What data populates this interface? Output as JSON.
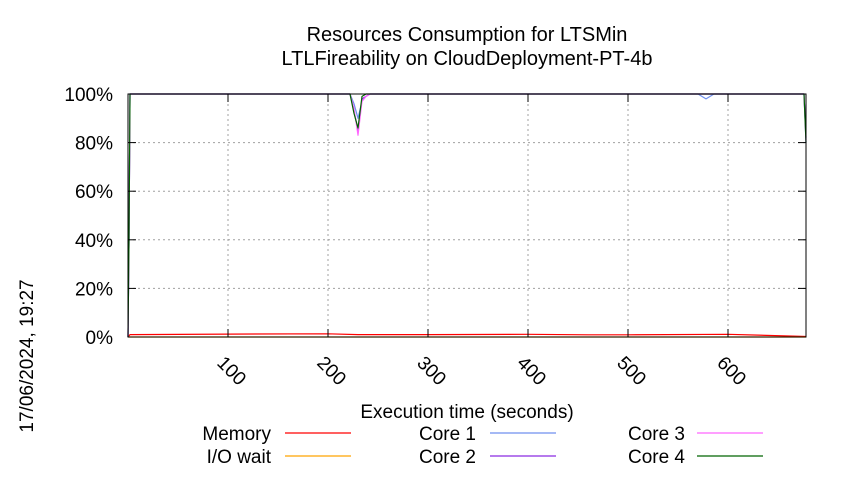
{
  "chart_data": {
    "type": "line",
    "title_line1": "Resources Consumption for LTSMin",
    "title_line2": "LTLFireability on CloudDeployment-PT-4b",
    "xlabel": "Execution time (seconds)",
    "ylabel": "",
    "xlim": [
      0,
      678
    ],
    "ylim": [
      0,
      100
    ],
    "x_ticks": [
      100,
      200,
      300,
      400,
      500,
      600
    ],
    "y_ticks": [
      {
        "value": 0,
        "label": "0%"
      },
      {
        "value": 20,
        "label": "20%"
      },
      {
        "value": 40,
        "label": "40%"
      },
      {
        "value": 60,
        "label": "60%"
      },
      {
        "value": 80,
        "label": "80%"
      },
      {
        "value": 100,
        "label": "100%"
      }
    ],
    "grid": true,
    "legend_position": "bottom",
    "timestamp": "17/06/2024, 19:27",
    "series": [
      {
        "name": "Memory",
        "color": "#ff0000",
        "x": [
          0,
          2,
          100,
          200,
          230,
          300,
          400,
          460,
          500,
          600,
          678
        ],
        "y": [
          0,
          1,
          1.2,
          1.3,
          1.0,
          1.0,
          1.1,
          0.9,
          0.9,
          1.1,
          0.2
        ]
      },
      {
        "name": "I/O wait",
        "color": "#ffa500",
        "x": [
          0,
          678
        ],
        "y": [
          0,
          0
        ]
      },
      {
        "name": "Core 1",
        "color": "#6f8fef",
        "x": [
          0,
          1,
          2,
          3,
          100,
          222,
          226,
          230,
          234,
          238,
          242,
          300,
          570,
          578,
          586,
          600,
          676,
          678
        ],
        "y": [
          0,
          40,
          100,
          100,
          100,
          100,
          96,
          90,
          97,
          99,
          100,
          100,
          100,
          98,
          100,
          100,
          100,
          80
        ]
      },
      {
        "name": "Core 2",
        "color": "#8a2be2",
        "x": [
          0,
          1,
          2,
          3,
          100,
          222,
          226,
          230,
          234,
          238,
          242,
          300,
          600,
          676,
          678
        ],
        "y": [
          0,
          40,
          100,
          100,
          100,
          100,
          93,
          85,
          98,
          99,
          100,
          100,
          100,
          100,
          82
        ]
      },
      {
        "name": "Core 3",
        "color": "#ff66ff",
        "x": [
          0,
          1,
          2,
          3,
          100,
          222,
          226,
          230,
          234,
          238,
          242,
          300,
          600,
          676,
          678
        ],
        "y": [
          0,
          40,
          100,
          100,
          100,
          100,
          94,
          83,
          97,
          99,
          100,
          100,
          100,
          100,
          81
        ]
      },
      {
        "name": "Core 4",
        "color": "#006400",
        "x": [
          0,
          1,
          2,
          3,
          100,
          222,
          226,
          230,
          234,
          238,
          242,
          300,
          600,
          676,
          678
        ],
        "y": [
          0,
          40,
          100,
          100,
          100,
          100,
          92,
          86,
          99,
          100,
          100,
          100,
          100,
          100,
          80
        ]
      }
    ]
  }
}
